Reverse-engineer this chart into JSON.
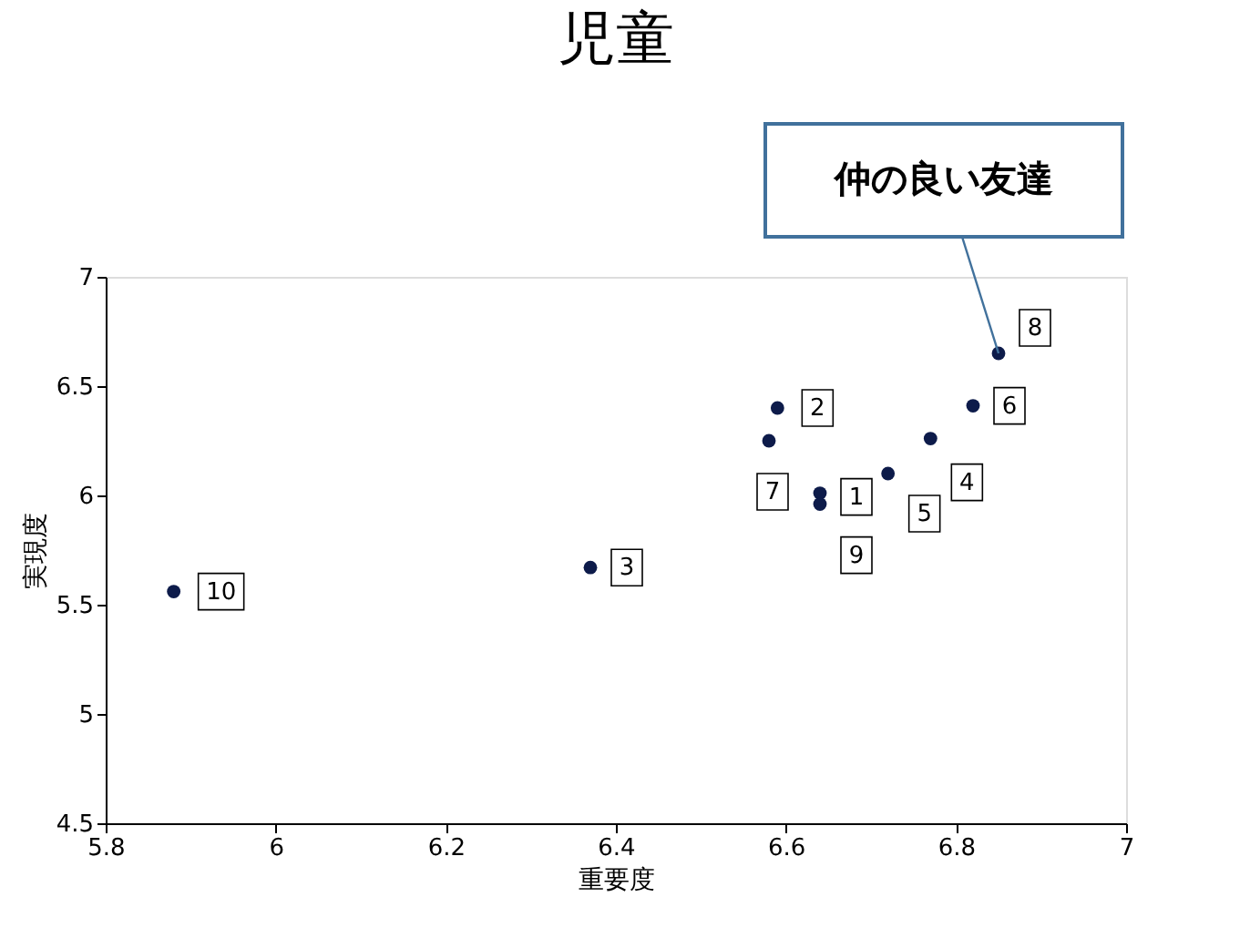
{
  "chart_data": {
    "type": "scatter",
    "title": "児童",
    "xlabel": "重要度",
    "ylabel": "実現度",
    "x": [
      6.64,
      6.59,
      6.37,
      6.77,
      6.72,
      6.82,
      6.58,
      6.85,
      6.64,
      5.88
    ],
    "series": [
      {
        "color": "#0d1b4a",
        "values": [
          6.01,
          6.4,
          5.67,
          6.26,
          6.1,
          6.41,
          6.25,
          6.65,
          5.96,
          5.56
        ]
      }
    ],
    "xlim": [
      5.8,
      7
    ],
    "xticks": [
      5.8,
      6,
      6.2,
      6.4,
      6.6,
      6.8,
      7
    ],
    "ylim": [
      4.5,
      7
    ],
    "yticks": [
      4.5,
      5,
      5.5,
      6,
      6.5,
      7
    ],
    "marker": "circle",
    "grid": false,
    "annotations": [
      {
        "text": "1",
        "x": 6.64,
        "y": 6.01
      },
      {
        "text": "2",
        "x": 6.59,
        "y": 6.4
      },
      {
        "text": "3",
        "x": 6.37,
        "y": 5.67
      },
      {
        "text": "4",
        "x": 6.77,
        "y": 6.26
      },
      {
        "text": "5",
        "x": 6.72,
        "y": 6.1
      },
      {
        "text": "6",
        "x": 6.82,
        "y": 6.41
      },
      {
        "text": "7",
        "x": 6.58,
        "y": 6.25
      },
      {
        "text": "8",
        "x": 6.85,
        "y": 6.65
      },
      {
        "text": "9",
        "x": 6.64,
        "y": 5.96
      },
      {
        "text": "10",
        "x": 5.88,
        "y": 5.56
      },
      {
        "text": "仲の良い友達",
        "x": 6.85,
        "y": 6.65
      }
    ]
  }
}
